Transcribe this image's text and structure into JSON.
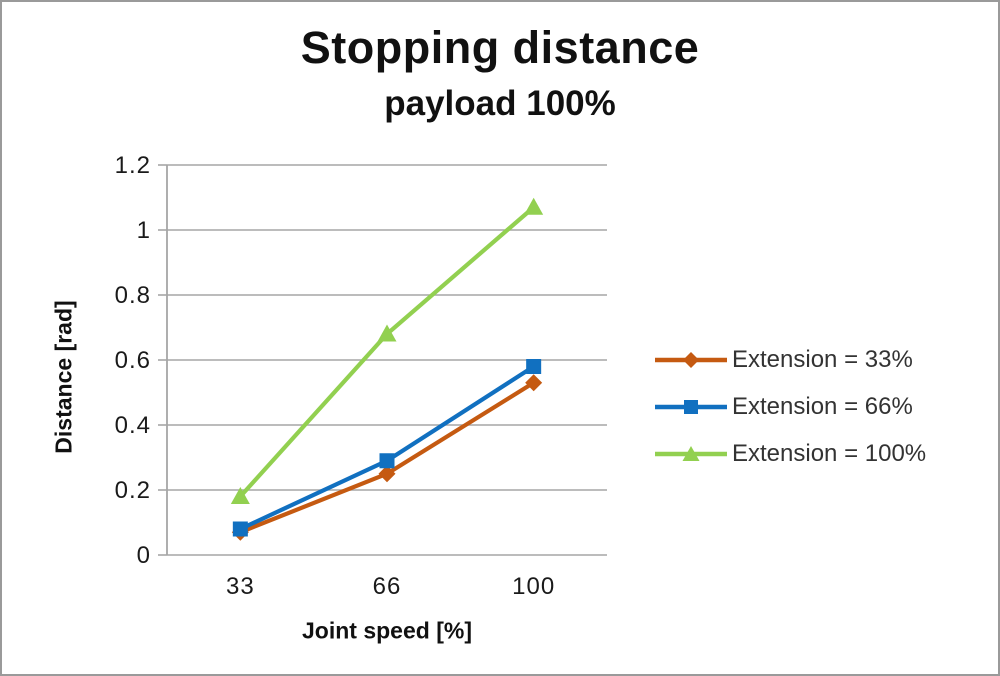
{
  "chart_data": {
    "type": "line",
    "title": "Stopping distance",
    "subtitle": "payload 100%",
    "xlabel": "Joint speed [%]",
    "ylabel": "Distance [rad]",
    "categories": [
      "33",
      "66",
      "100"
    ],
    "series": [
      {
        "name": "Extension = 33%",
        "color": "#C55A11",
        "marker": "diamond",
        "values": [
          0.07,
          0.25,
          0.53
        ]
      },
      {
        "name": "Extension = 66%",
        "color": "#1170C0",
        "marker": "square",
        "values": [
          0.08,
          0.29,
          0.58
        ]
      },
      {
        "name": "Extension = 100%",
        "color": "#92D050",
        "marker": "triangle",
        "values": [
          0.18,
          0.68,
          1.07
        ]
      }
    ],
    "ylim": [
      0,
      1.2
    ],
    "yticks": [
      0,
      0.2,
      0.4,
      0.6,
      0.8,
      1,
      1.2
    ],
    "ytick_labels": [
      "0",
      "0.2",
      "0.4",
      "0.6",
      "0.8",
      "1",
      "1.2"
    ],
    "grid": true,
    "legend_position": "right",
    "grid_color": "#A6A6A6",
    "tick_text_color": "#1a1a1a"
  }
}
